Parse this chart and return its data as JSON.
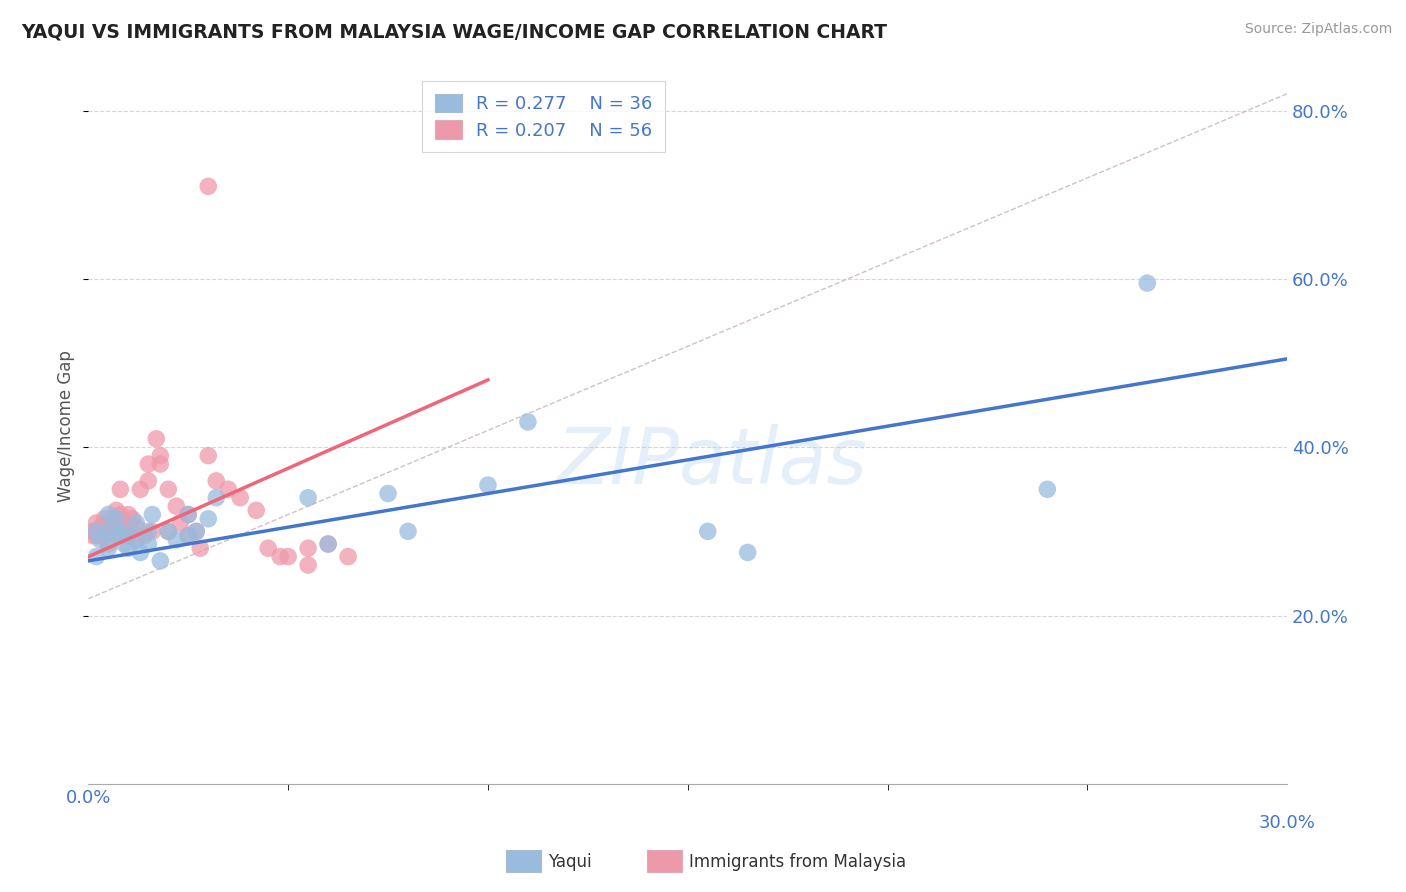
{
  "title": "YAQUI VS IMMIGRANTS FROM MALAYSIA WAGE/INCOME GAP CORRELATION CHART",
  "source": "Source: ZipAtlas.com",
  "ylabel": "Wage/Income Gap",
  "xlim": [
    0.0,
    0.3
  ],
  "ylim": [
    0.0,
    0.85
  ],
  "legend_r1": "0.277",
  "legend_n1": "36",
  "legend_r2": "0.207",
  "legend_n2": "56",
  "blue_color": "#99BBDD",
  "pink_color": "#EE99AA",
  "line_blue": "#4477CC",
  "line_pink": "#EE6677",
  "line_diag_color": "#CCBBBB",
  "text_color": "#4477CC",
  "axis_text_color": "#4477CC",
  "background": "#FFFFFF",
  "blue_line_x": [
    0.0,
    0.3
  ],
  "blue_line_y": [
    0.265,
    0.505
  ],
  "pink_line_x": [
    0.0,
    0.1
  ],
  "pink_line_y": [
    0.27,
    0.48
  ],
  "diag_line_x": [
    0.0,
    0.3
  ],
  "diag_line_y": [
    0.22,
    0.82
  ],
  "blue_scatter_x": [
    0.002,
    0.002,
    0.003,
    0.005,
    0.005,
    0.005,
    0.007,
    0.007,
    0.008,
    0.009,
    0.01,
    0.01,
    0.012,
    0.012,
    0.013,
    0.015,
    0.015,
    0.016,
    0.018,
    0.02,
    0.022,
    0.025,
    0.025,
    0.027,
    0.03,
    0.032,
    0.055,
    0.06,
    0.075,
    0.08,
    0.1,
    0.11,
    0.155,
    0.165,
    0.24,
    0.265
  ],
  "blue_scatter_y": [
    0.3,
    0.27,
    0.29,
    0.32,
    0.28,
    0.3,
    0.295,
    0.315,
    0.3,
    0.285,
    0.295,
    0.28,
    0.31,
    0.29,
    0.275,
    0.3,
    0.285,
    0.32,
    0.265,
    0.3,
    0.29,
    0.32,
    0.295,
    0.3,
    0.315,
    0.34,
    0.34,
    0.285,
    0.345,
    0.3,
    0.355,
    0.43,
    0.3,
    0.275,
    0.35,
    0.595
  ],
  "pink_scatter_x": [
    0.001,
    0.001,
    0.002,
    0.002,
    0.003,
    0.003,
    0.004,
    0.004,
    0.004,
    0.005,
    0.005,
    0.005,
    0.006,
    0.006,
    0.007,
    0.007,
    0.007,
    0.008,
    0.008,
    0.009,
    0.009,
    0.01,
    0.01,
    0.01,
    0.011,
    0.012,
    0.012,
    0.013,
    0.014,
    0.015,
    0.015,
    0.016,
    0.017,
    0.018,
    0.018,
    0.02,
    0.02,
    0.022,
    0.023,
    0.025,
    0.025,
    0.027,
    0.028,
    0.03,
    0.032,
    0.035,
    0.038,
    0.042,
    0.045,
    0.048,
    0.05,
    0.055,
    0.055,
    0.06,
    0.065,
    0.03
  ],
  "pink_scatter_y": [
    0.3,
    0.295,
    0.31,
    0.295,
    0.305,
    0.295,
    0.305,
    0.315,
    0.295,
    0.31,
    0.3,
    0.285,
    0.315,
    0.3,
    0.31,
    0.325,
    0.295,
    0.35,
    0.32,
    0.31,
    0.295,
    0.305,
    0.295,
    0.32,
    0.315,
    0.305,
    0.29,
    0.35,
    0.295,
    0.38,
    0.36,
    0.3,
    0.41,
    0.39,
    0.38,
    0.35,
    0.3,
    0.33,
    0.31,
    0.32,
    0.295,
    0.3,
    0.28,
    0.39,
    0.36,
    0.35,
    0.34,
    0.325,
    0.28,
    0.27,
    0.27,
    0.26,
    0.28,
    0.285,
    0.27,
    0.71
  ]
}
